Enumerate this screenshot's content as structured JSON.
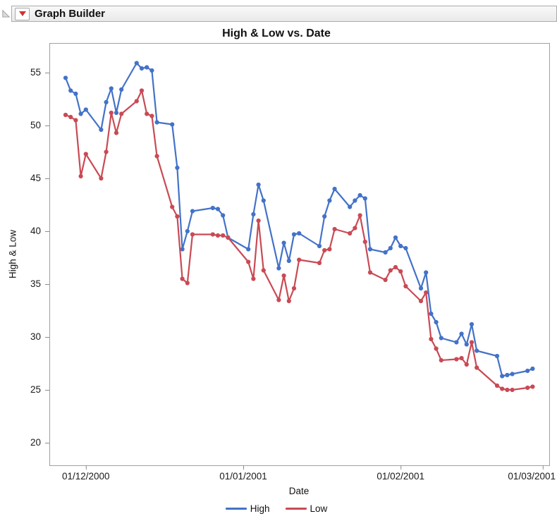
{
  "window": {
    "outline_title": "Graph Builder"
  },
  "colors": {
    "high_series": "#4372C8",
    "low_series": "#C94A54",
    "menu_triangle": "#CC3333",
    "plot_border": "#a0a0a0",
    "tick": "#8c8c8c"
  },
  "chart_data": {
    "type": "line",
    "title": "High & Low vs. Date",
    "xlabel": "Date",
    "ylabel": "High & Low",
    "grid": false,
    "legend_position": "bottom",
    "marker": "circle",
    "y_ticks": [
      20,
      25,
      30,
      35,
      40,
      45,
      50,
      55
    ],
    "y_range": [
      17.9,
      57.8
    ],
    "x_ticks": [
      {
        "label": "01/12/2000",
        "date": "2000-12-01"
      },
      {
        "label": "01/01/2001",
        "date": "2001-01-01"
      },
      {
        "label": "01/02/2001",
        "date": "2001-02-01"
      },
      {
        "label": "01/03/2001",
        "date": "2001-03-01"
      }
    ],
    "dates": [
      "2000-11-27",
      "2000-11-28",
      "2000-11-29",
      "2000-11-30",
      "2000-12-01",
      "2000-12-04",
      "2000-12-05",
      "2000-12-06",
      "2000-12-07",
      "2000-12-08",
      "2000-12-11",
      "2000-12-12",
      "2000-12-13",
      "2000-12-14",
      "2000-12-15",
      "2000-12-18",
      "2000-12-19",
      "2000-12-20",
      "2000-12-21",
      "2000-12-22",
      "2000-12-26",
      "2000-12-27",
      "2000-12-28",
      "2000-12-29",
      "2001-01-02",
      "2001-01-03",
      "2001-01-04",
      "2001-01-05",
      "2001-01-08",
      "2001-01-09",
      "2001-01-10",
      "2001-01-11",
      "2001-01-12",
      "2001-01-16",
      "2001-01-17",
      "2001-01-18",
      "2001-01-19",
      "2001-01-22",
      "2001-01-23",
      "2001-01-24",
      "2001-01-25",
      "2001-01-26",
      "2001-01-29",
      "2001-01-30",
      "2001-01-31",
      "2001-02-01",
      "2001-02-02",
      "2001-02-05",
      "2001-02-06",
      "2001-02-07",
      "2001-02-08",
      "2001-02-09",
      "2001-02-12",
      "2001-02-13",
      "2001-02-14",
      "2001-02-15",
      "2001-02-16",
      "2001-02-20",
      "2001-02-21",
      "2001-02-22",
      "2001-02-23",
      "2001-02-26",
      "2001-02-27"
    ],
    "series": [
      {
        "name": "High",
        "color": "#4372C8",
        "values": [
          54.5,
          53.3,
          53.0,
          51.1,
          51.5,
          49.6,
          52.2,
          53.5,
          51.2,
          53.4,
          55.9,
          55.4,
          55.5,
          55.2,
          50.3,
          50.1,
          46.0,
          38.3,
          40.0,
          41.9,
          42.2,
          42.1,
          41.5,
          39.4,
          38.3,
          41.6,
          44.4,
          42.9,
          36.5,
          38.9,
          37.2,
          39.7,
          39.8,
          38.6,
          41.4,
          42.9,
          44.0,
          42.3,
          42.9,
          43.4,
          43.1,
          38.3,
          38.0,
          38.4,
          39.4,
          38.6,
          38.4,
          34.6,
          36.1,
          32.2,
          31.4,
          29.9,
          29.5,
          30.3,
          29.3,
          31.2,
          28.7,
          28.2,
          26.3,
          26.4,
          26.5,
          26.8,
          27.0
        ]
      },
      {
        "name": "Low",
        "color": "#C94A54",
        "values": [
          51.0,
          50.8,
          50.5,
          45.2,
          47.3,
          45.0,
          47.5,
          51.2,
          49.3,
          51.1,
          52.3,
          53.3,
          51.1,
          50.9,
          47.1,
          42.3,
          41.4,
          35.5,
          35.1,
          39.7,
          39.7,
          39.6,
          39.6,
          39.4,
          37.1,
          35.5,
          41.0,
          36.3,
          33.5,
          35.8,
          33.4,
          34.6,
          37.3,
          37.0,
          38.2,
          38.3,
          40.2,
          39.8,
          40.3,
          41.5,
          39.0,
          36.1,
          35.4,
          36.3,
          36.6,
          36.2,
          34.8,
          33.4,
          34.2,
          29.8,
          28.9,
          27.8,
          27.9,
          28.0,
          27.4,
          29.5,
          27.1,
          25.4,
          25.1,
          25.0,
          25.0,
          25.2,
          25.3
        ]
      }
    ]
  }
}
